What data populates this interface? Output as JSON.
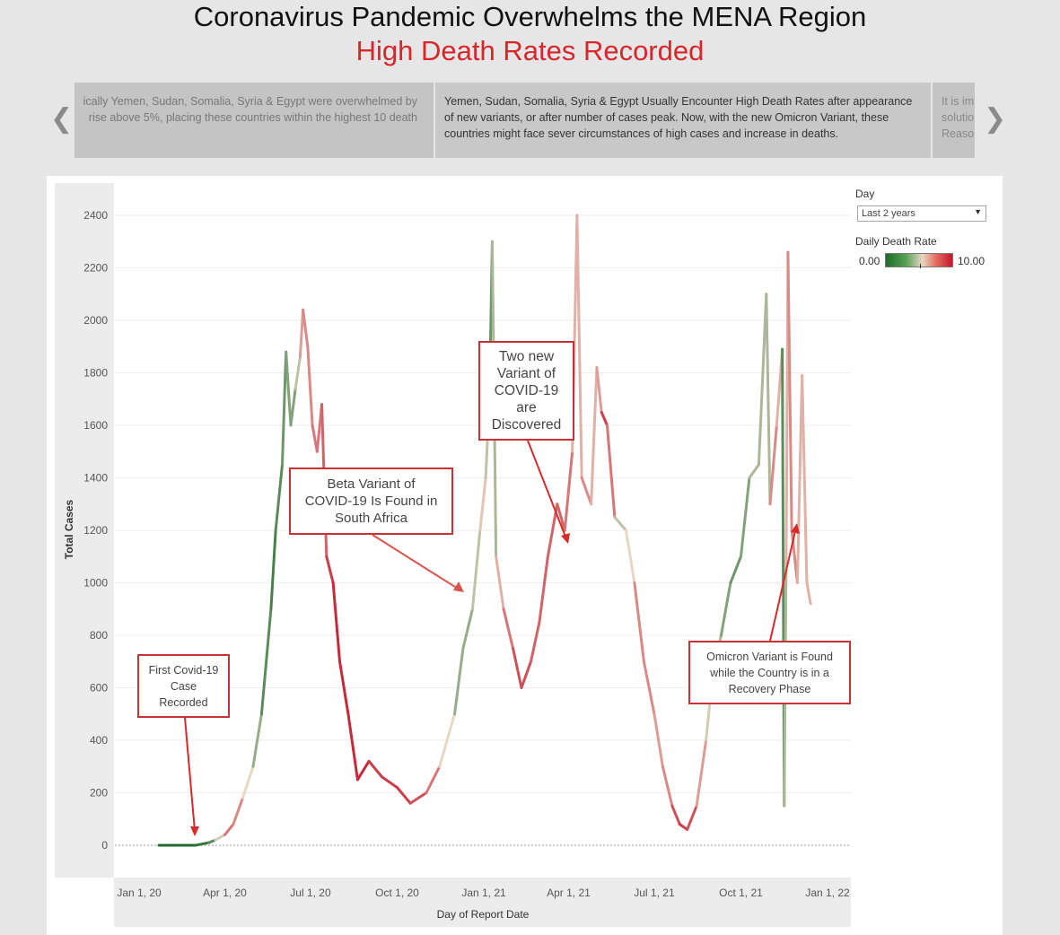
{
  "header": {
    "title": "Coronavirus Pandemic Overwhelms the MENA Region",
    "subtitle": "High Death Rates Recorded"
  },
  "story": {
    "prev_card": [
      "ically Yemen, Sudan, Somalia, Syria & Egypt were overwhelmed by",
      "rise above 5%, placing these countries within the highest 10 death"
    ],
    "current_card": [
      "Yemen, Sudan, Somalia, Syria & Egypt Usually Encounter High Death Rates after appearance",
      "of new variants, or after number of cases peak. Now, with the new Omicron Variant, these",
      "countries might face sever circumstances of high cases and increase in deaths."
    ],
    "next_card": [
      "It is im",
      "solutio",
      "Reasor"
    ]
  },
  "filters": {
    "day_label": "Day",
    "day_value": "Last 2 years",
    "rate_label": "Daily Death Rate",
    "rate_min": "0.00",
    "rate_max": "10.00"
  },
  "annotations": {
    "first": "First Covid-19\nCase\nRecorded",
    "beta": "Beta Variant of\nCOVID-19 Is Found in\nSouth Africa",
    "two": "Two new\nVariant of\nCOVID-19\nare\nDiscovered",
    "omicron": "Omicron Variant is Found\nwhile the Country is in a\nRecovery Phase"
  },
  "chart_data": {
    "type": "line",
    "ylabel": "Total Cases",
    "xlabel": "Day of Report Date",
    "ylim": [
      0,
      2400
    ],
    "y_ticks": [
      0,
      200,
      400,
      600,
      800,
      1000,
      1200,
      1400,
      1600,
      1800,
      2000,
      2200,
      2400
    ],
    "x_ticks": [
      "Jan 1, 20",
      "Apr 1, 20",
      "Jul 1, 20",
      "Oct 1, 20",
      "Jan 1, 21",
      "Apr 1, 21",
      "Jul 1, 21",
      "Oct 1, 21",
      "Jan 1, 22"
    ],
    "xlim": [
      "2020-01-01",
      "2022-01-01"
    ],
    "color_scale": {
      "min": 0,
      "max": 10,
      "low_color": "#1e6b2e",
      "mid_color": "#e8d7c5",
      "high_color": "#c2172a"
    },
    "series": [
      {
        "points": [
          {
            "x": "2020-01-22",
            "y": 0,
            "rate": 0
          },
          {
            "x": "2020-03-01",
            "y": 0,
            "rate": 0
          },
          {
            "x": "2020-03-15",
            "y": 10,
            "rate": 1
          },
          {
            "x": "2020-03-22",
            "y": 20,
            "rate": 2
          },
          {
            "x": "2020-04-01",
            "y": 40,
            "rate": 7
          },
          {
            "x": "2020-04-10",
            "y": 80,
            "rate": 8
          },
          {
            "x": "2020-04-20",
            "y": 180,
            "rate": 6
          },
          {
            "x": "2020-05-01",
            "y": 300,
            "rate": 4
          },
          {
            "x": "2020-05-10",
            "y": 500,
            "rate": 2
          },
          {
            "x": "2020-05-20",
            "y": 900,
            "rate": 1
          },
          {
            "x": "2020-05-25",
            "y": 1200,
            "rate": 1
          },
          {
            "x": "2020-06-01",
            "y": 1450,
            "rate": 2
          },
          {
            "x": "2020-06-05",
            "y": 1880,
            "rate": 2
          },
          {
            "x": "2020-06-10",
            "y": 1600,
            "rate": 3
          },
          {
            "x": "2020-06-15",
            "y": 1740,
            "rate": 2
          },
          {
            "x": "2020-06-20",
            "y": 1860,
            "rate": 6
          },
          {
            "x": "2020-06-23",
            "y": 2040,
            "rate": 7
          },
          {
            "x": "2020-06-28",
            "y": 1900,
            "rate": 7
          },
          {
            "x": "2020-07-03",
            "y": 1600,
            "rate": 7
          },
          {
            "x": "2020-07-08",
            "y": 1500,
            "rate": 8
          },
          {
            "x": "2020-07-13",
            "y": 1680,
            "rate": 7
          },
          {
            "x": "2020-07-18",
            "y": 1100,
            "rate": 9
          },
          {
            "x": "2020-07-25",
            "y": 1000,
            "rate": 9
          },
          {
            "x": "2020-08-01",
            "y": 700,
            "rate": 10
          },
          {
            "x": "2020-08-10",
            "y": 500,
            "rate": 9
          },
          {
            "x": "2020-08-20",
            "y": 250,
            "rate": 10
          },
          {
            "x": "2020-09-01",
            "y": 320,
            "rate": 9
          },
          {
            "x": "2020-09-15",
            "y": 260,
            "rate": 9
          },
          {
            "x": "2020-10-01",
            "y": 220,
            "rate": 9
          },
          {
            "x": "2020-10-15",
            "y": 160,
            "rate": 9
          },
          {
            "x": "2020-11-01",
            "y": 200,
            "rate": 8
          },
          {
            "x": "2020-11-15",
            "y": 300,
            "rate": 7
          },
          {
            "x": "2020-12-01",
            "y": 500,
            "rate": 3
          },
          {
            "x": "2020-12-10",
            "y": 750,
            "rate": 3
          },
          {
            "x": "2020-12-20",
            "y": 900,
            "rate": 3
          },
          {
            "x": "2020-12-28",
            "y": 1200,
            "rate": 5
          },
          {
            "x": "2021-01-03",
            "y": 1400,
            "rate": 6
          },
          {
            "x": "2021-01-07",
            "y": 1700,
            "rate": 2
          },
          {
            "x": "2021-01-10",
            "y": 2300,
            "rate": 2
          },
          {
            "x": "2021-01-14",
            "y": 1100,
            "rate": 5
          },
          {
            "x": "2021-01-22",
            "y": 900,
            "rate": 7
          },
          {
            "x": "2021-02-01",
            "y": 750,
            "rate": 8
          },
          {
            "x": "2021-02-10",
            "y": 600,
            "rate": 9
          },
          {
            "x": "2021-02-20",
            "y": 700,
            "rate": 8
          },
          {
            "x": "2021-03-01",
            "y": 850,
            "rate": 8
          },
          {
            "x": "2021-03-10",
            "y": 1100,
            "rate": 8
          },
          {
            "x": "2021-03-20",
            "y": 1300,
            "rate": 8
          },
          {
            "x": "2021-03-28",
            "y": 1200,
            "rate": 8
          },
          {
            "x": "2021-04-05",
            "y": 1500,
            "rate": 7
          },
          {
            "x": "2021-04-10",
            "y": 2400,
            "rate": 5
          },
          {
            "x": "2021-04-15",
            "y": 1400,
            "rate": 7
          },
          {
            "x": "2021-04-25",
            "y": 1300,
            "rate": 7
          },
          {
            "x": "2021-05-01",
            "y": 1820,
            "rate": 5
          },
          {
            "x": "2021-05-06",
            "y": 1650,
            "rate": 8
          },
          {
            "x": "2021-05-12",
            "y": 1600,
            "rate": 10
          },
          {
            "x": "2021-05-20",
            "y": 1250,
            "rate": 5
          },
          {
            "x": "2021-06-01",
            "y": 1200,
            "rate": 3
          },
          {
            "x": "2021-06-10",
            "y": 1000,
            "rate": 7
          },
          {
            "x": "2021-06-20",
            "y": 700,
            "rate": 7
          },
          {
            "x": "2021-07-01",
            "y": 500,
            "rate": 7
          },
          {
            "x": "2021-07-10",
            "y": 300,
            "rate": 6
          },
          {
            "x": "2021-07-20",
            "y": 150,
            "rate": 8
          },
          {
            "x": "2021-07-28",
            "y": 80,
            "rate": 9
          },
          {
            "x": "2021-08-05",
            "y": 60,
            "rate": 9
          },
          {
            "x": "2021-08-15",
            "y": 150,
            "rate": 8
          },
          {
            "x": "2021-08-25",
            "y": 400,
            "rate": 5
          },
          {
            "x": "2021-09-01",
            "y": 650,
            "rate": 4
          },
          {
            "x": "2021-09-10",
            "y": 800,
            "rate": 3
          },
          {
            "x": "2021-09-20",
            "y": 1000,
            "rate": 2
          },
          {
            "x": "2021-10-01",
            "y": 1100,
            "rate": 2
          },
          {
            "x": "2021-10-10",
            "y": 1400,
            "rate": 3
          },
          {
            "x": "2021-10-20",
            "y": 1450,
            "rate": 4
          },
          {
            "x": "2021-10-28",
            "y": 2100,
            "rate": 3
          },
          {
            "x": "2021-11-01",
            "y": 1300,
            "rate": 4
          },
          {
            "x": "2021-11-08",
            "y": 1600,
            "rate": 10
          },
          {
            "x": "2021-11-14",
            "y": 1890,
            "rate": 2
          },
          {
            "x": "2021-11-16",
            "y": 150,
            "rate": 1
          },
          {
            "x": "2021-11-18",
            "y": 1050,
            "rate": 6
          },
          {
            "x": "2021-11-20",
            "y": 2260,
            "rate": 6
          },
          {
            "x": "2021-11-24",
            "y": 1200,
            "rate": 8
          },
          {
            "x": "2021-11-30",
            "y": 1000,
            "rate": 6
          },
          {
            "x": "2021-12-05",
            "y": 1790,
            "rate": 6
          },
          {
            "x": "2021-12-10",
            "y": 1000,
            "rate": 6
          },
          {
            "x": "2021-12-14",
            "y": 920,
            "rate": 6
          }
        ]
      }
    ]
  }
}
